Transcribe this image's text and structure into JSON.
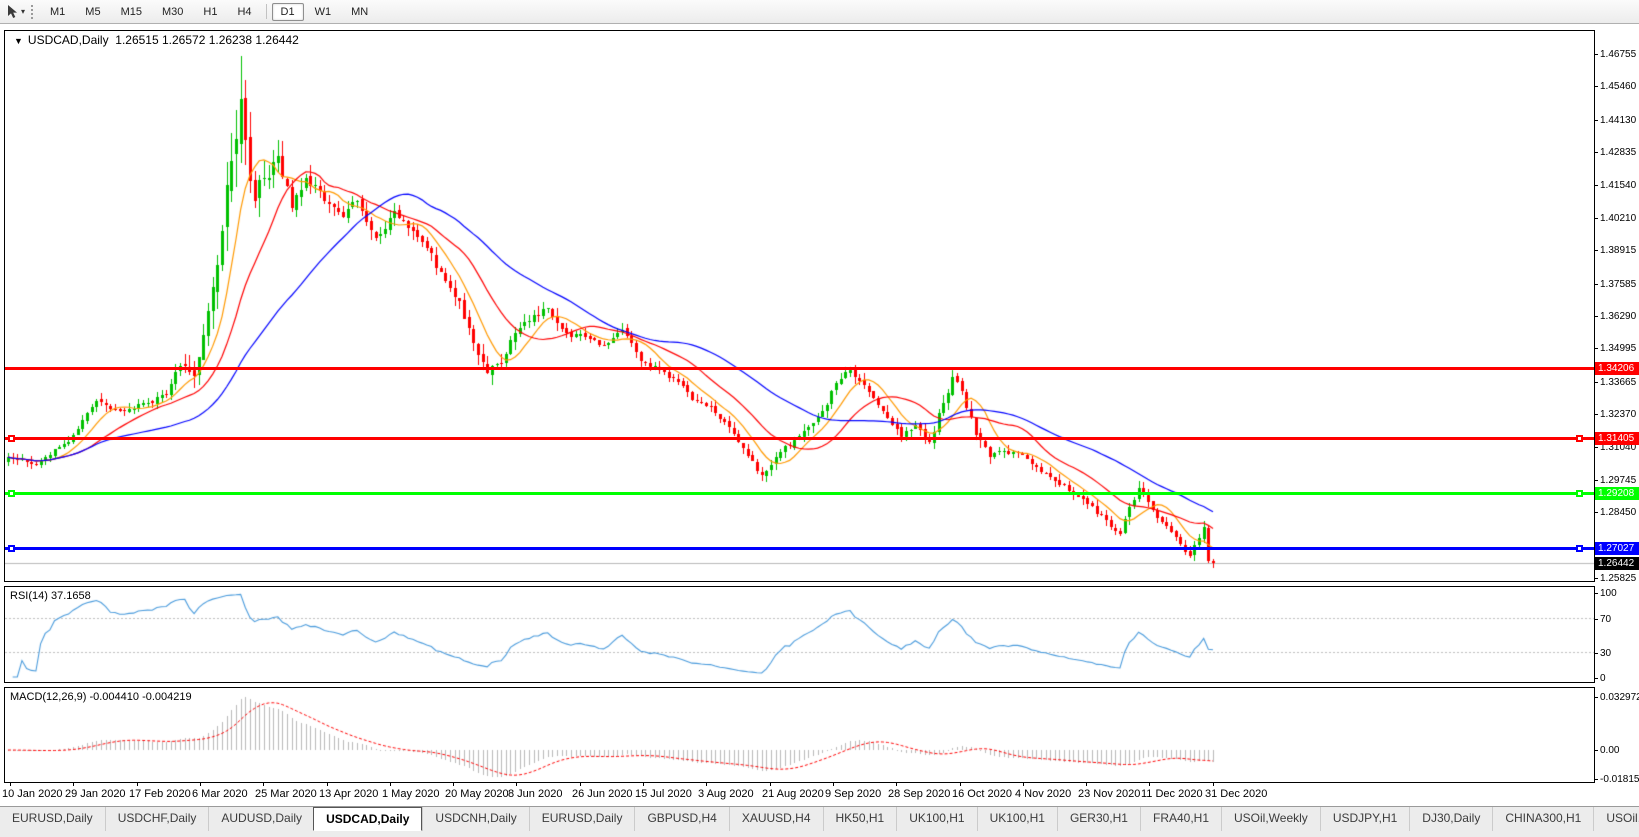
{
  "toolbar": {
    "timeframes": [
      "M1",
      "M5",
      "M15",
      "M30",
      "H1",
      "H4",
      "D1",
      "W1",
      "MN"
    ],
    "active_timeframe": "D1",
    "separator_before": "D1"
  },
  "chart_title": {
    "collapse_icon": "▼",
    "symbol_period": "USDCAD,Daily",
    "ohlc_text": "1.26515 1.26572 1.26238 1.26442"
  },
  "rsi": {
    "label": "RSI(14) 37.1658"
  },
  "macd": {
    "label": "MACD(12,26,9) -0.004410 -0.004219"
  },
  "tabs": {
    "items": [
      "EURUSD,Daily",
      "USDCHF,Daily",
      "AUDUSD,Daily",
      "USDCAD,Daily",
      "USDCNH,Daily",
      "EURUSD,Daily",
      "GBPUSD,H4",
      "XAUUSD,H4",
      "HK50,H1",
      "UK100,H1",
      "UK100,H1",
      "GER30,H1",
      "FRA40,H1",
      "USOil,Weekly",
      "USDJPY,H1",
      "DJ30,Daily",
      "CHINA300,H1",
      "USOil,"
    ],
    "active_index": 3,
    "scroll_left": "◂",
    "scroll_right": "▸"
  },
  "colors": {
    "candle_up": "#00c000",
    "candle_down": "#ff0000",
    "ma_fast": "#ff9900",
    "ma_medium": "#ff0000",
    "ma_slow": "#0000ff",
    "rsi_line": "#4a9bdc",
    "macd_hist": "#b8b8b8",
    "macd_signal": "#ff0000",
    "current_price_line": "#b8b8b8",
    "current_price_label_bg": "#000000"
  },
  "chart_data": {
    "type": "candlestick",
    "symbol": "USDCAD",
    "timeframe": "Daily",
    "bars": 260,
    "last_bar": {
      "open": 1.26515,
      "high": 1.26572,
      "low": 1.26238,
      "close": 1.26442
    },
    "spike_high": {
      "index": 50,
      "value": 1.4668
    },
    "close_anchors": [
      [
        0,
        1.3065,
        0.005
      ],
      [
        6,
        1.3035,
        0.005
      ],
      [
        13,
        1.3125,
        0.005
      ],
      [
        19,
        1.329,
        0.006
      ],
      [
        24,
        1.325,
        0.005
      ],
      [
        29,
        1.328,
        0.005
      ],
      [
        34,
        1.3315,
        0.006
      ],
      [
        37,
        1.343,
        0.008
      ],
      [
        40,
        1.339,
        0.01
      ],
      [
        43,
        1.365,
        0.014
      ],
      [
        46,
        1.397,
        0.02
      ],
      [
        48,
        1.425,
        0.026
      ],
      [
        50,
        1.4495,
        0.028
      ],
      [
        51,
        1.433,
        0.024
      ],
      [
        53,
        1.409,
        0.02
      ],
      [
        55,
        1.418,
        0.016
      ],
      [
        58,
        1.427,
        0.014
      ],
      [
        61,
        1.406,
        0.012
      ],
      [
        64,
        1.418,
        0.01
      ],
      [
        68,
        1.409,
        0.009
      ],
      [
        72,
        1.4025,
        0.008
      ],
      [
        75,
        1.409,
        0.008
      ],
      [
        79,
        1.394,
        0.008
      ],
      [
        83,
        1.405,
        0.008
      ],
      [
        86,
        1.398,
        0.007
      ],
      [
        90,
        1.39,
        0.007
      ],
      [
        94,
        1.377,
        0.007
      ],
      [
        97,
        1.369,
        0.007
      ],
      [
        100,
        1.352,
        0.008
      ],
      [
        103,
        1.34,
        0.009
      ],
      [
        106,
        1.344,
        0.008
      ],
      [
        109,
        1.356,
        0.008
      ],
      [
        112,
        1.361,
        0.007
      ],
      [
        116,
        1.366,
        0.007
      ],
      [
        120,
        1.356,
        0.006
      ],
      [
        124,
        1.3545,
        0.006
      ],
      [
        128,
        1.351,
        0.005
      ],
      [
        132,
        1.3575,
        0.005
      ],
      [
        136,
        1.345,
        0.005
      ],
      [
        140,
        1.3415,
        0.005
      ],
      [
        143,
        1.338,
        0.005
      ],
      [
        147,
        1.3295,
        0.005
      ],
      [
        151,
        1.327,
        0.005
      ],
      [
        155,
        1.3185,
        0.005
      ],
      [
        159,
        1.307,
        0.005
      ],
      [
        162,
        1.2995,
        0.005
      ],
      [
        165,
        1.3065,
        0.005
      ],
      [
        169,
        1.3135,
        0.006
      ],
      [
        172,
        1.3185,
        0.006
      ],
      [
        175,
        1.325,
        0.006
      ],
      [
        178,
        1.336,
        0.007
      ],
      [
        181,
        1.3415,
        0.007
      ],
      [
        183,
        1.337,
        0.006
      ],
      [
        186,
        1.33,
        0.006
      ],
      [
        189,
        1.322,
        0.006
      ],
      [
        192,
        1.3145,
        0.006
      ],
      [
        195,
        1.3195,
        0.006
      ],
      [
        198,
        1.3125,
        0.006
      ],
      [
        201,
        1.328,
        0.007
      ],
      [
        203,
        1.3385,
        0.007
      ],
      [
        205,
        1.333,
        0.007
      ],
      [
        208,
        1.3155,
        0.007
      ],
      [
        211,
        1.3065,
        0.006
      ],
      [
        214,
        1.309,
        0.005
      ],
      [
        218,
        1.3075,
        0.005
      ],
      [
        221,
        1.3025,
        0.005
      ],
      [
        224,
        1.2985,
        0.005
      ],
      [
        228,
        1.293,
        0.005
      ],
      [
        232,
        1.288,
        0.005
      ],
      [
        236,
        1.2815,
        0.005
      ],
      [
        239,
        1.276,
        0.005
      ],
      [
        241,
        1.2868,
        0.006
      ],
      [
        243,
        1.294,
        0.006
      ],
      [
        245,
        1.2885,
        0.005
      ],
      [
        248,
        1.2805,
        0.005
      ],
      [
        251,
        1.2748,
        0.005
      ],
      [
        254,
        1.2672,
        0.005
      ],
      [
        256,
        1.2742,
        0.005
      ],
      [
        257,
        1.2788,
        0.005
      ],
      [
        258,
        1.2652,
        0.007
      ],
      [
        259,
        1.26442,
        0.004
      ]
    ],
    "moving_averages": [
      {
        "name": "MA fast",
        "period": 8,
        "color": "#ff9900"
      },
      {
        "name": "MA medium",
        "period": 18,
        "color": "#ff0000"
      },
      {
        "name": "MA slow",
        "period": 40,
        "color": "#0000ff"
      }
    ],
    "horizontal_lines": [
      {
        "price": 1.34206,
        "label": "1.34206",
        "color": "#ff0000",
        "text_color": "#ffffff",
        "thickness": 3,
        "selected": false
      },
      {
        "price": 1.31405,
        "label": "1.31405",
        "color": "#ff0000",
        "text_color": "#ffffff",
        "thickness": 3,
        "selected": true
      },
      {
        "price": 1.29208,
        "label": "1.29208",
        "color": "#00ff00",
        "text_color": "#ffffff",
        "thickness": 3,
        "selected": true
      },
      {
        "price": 1.27027,
        "label": "1.27027",
        "color": "#0000ff",
        "text_color": "#ffffff",
        "thickness": 3,
        "selected": true
      }
    ],
    "current_price": {
      "value": 1.26442,
      "label": "1.26442"
    },
    "price_axis_ticks": [
      1.46755,
      1.4546,
      1.4413,
      1.42835,
      1.4154,
      1.4021,
      1.38915,
      1.37585,
      1.3629,
      1.34995,
      1.33665,
      1.3237,
      1.3104,
      1.29745,
      1.2845,
      1.25825
    ],
    "date_ticks": [
      "10 Jan 2020",
      "29 Jan 2020",
      "17 Feb 2020",
      "6 Mar 2020",
      "25 Mar 2020",
      "13 Apr 2020",
      "1 May 2020",
      "20 May 2020",
      "8 Jun 2020",
      "26 Jun 2020",
      "15 Jul 2020",
      "3 Aug 2020",
      "21 Aug 2020",
      "9 Sep 2020",
      "28 Sep 2020",
      "16 Oct 2020",
      "4 Nov 2020",
      "23 Nov 2020",
      "11 Dec 2020",
      "31 Dec 2020"
    ],
    "rsi": {
      "period": 14,
      "value": 37.1658,
      "ticks": [
        100,
        70,
        30,
        0
      ],
      "dashed_levels": [
        70,
        30
      ]
    },
    "macd": {
      "fast": 12,
      "slow": 26,
      "signal": 9,
      "macd_value": -0.00441,
      "signal_value": -0.004219,
      "ticks": [
        "0.032972",
        "0.00",
        "-0.018154"
      ],
      "tick_values": [
        0.032972,
        0,
        -0.018154
      ]
    }
  }
}
